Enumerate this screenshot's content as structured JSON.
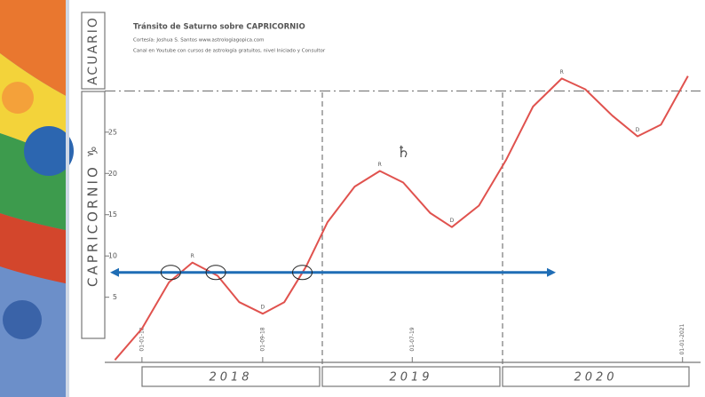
{
  "chart_data": {
    "type": "line",
    "title": "Tránsito de Saturno sobre CAPRICORNIO",
    "subtitle": "Cortesía: Joshua S. Santos  www.astrologiagopica.com",
    "note": "Canal en Youtube con cursos de astrología gratuitos, nivel Iniciado y Consultor",
    "upper_sign": "ACUARIO",
    "y_label": "CAPRICORNIO ♑",
    "years": [
      "2018",
      "2019",
      "2020"
    ],
    "x": [
      2017.85,
      2018.0,
      2018.15,
      2018.28,
      2018.42,
      2018.54,
      2018.67,
      2018.79,
      2018.91,
      2019.03,
      2019.18,
      2019.32,
      2019.45,
      2019.6,
      2019.72,
      2019.87,
      2020.02,
      2020.17,
      2020.33,
      2020.46,
      2020.61,
      2020.75,
      2020.88,
      2021.03
    ],
    "series": [
      {
        "name": "Saturno",
        "color": "#e0524e",
        "values": [
          -2.6,
          1.2,
          6.8,
          9.2,
          7.6,
          4.4,
          3.0,
          4.4,
          8.7,
          14.1,
          18.4,
          20.3,
          18.9,
          15.2,
          13.5,
          16.1,
          21.6,
          28.1,
          31.5,
          30.2,
          27.0,
          24.5,
          25.9,
          31.8
        ]
      }
    ],
    "annotations": [
      {
        "x": 2018.28,
        "y": 9.2,
        "text": "R"
      },
      {
        "x": 2018.67,
        "y": 3.0,
        "text": "D"
      },
      {
        "x": 2019.32,
        "y": 20.3,
        "text": "R"
      },
      {
        "x": 2019.72,
        "y": 13.5,
        "text": "D"
      },
      {
        "x": 2020.33,
        "y": 31.5,
        "text": "R"
      },
      {
        "x": 2020.75,
        "y": 24.5,
        "text": "D"
      },
      {
        "x": 2019.45,
        "y": 22.5,
        "text": "♄"
      }
    ],
    "highlight_level": 8,
    "highlight_color": "#1f6db5",
    "crossings": [
      2018.16,
      2018.41,
      2018.89
    ],
    "sign_boundary": 30,
    "xlim": [
      2017.7,
      2021.1
    ],
    "ylim": [
      -3,
      38
    ],
    "yticks": [
      5,
      10,
      15,
      20,
      25
    ],
    "xticks": [
      {
        "value": 2018.0,
        "label": "01-01-18"
      },
      {
        "value": 2018.67,
        "label": "01-09-18"
      },
      {
        "value": 2019.5,
        "label": "01-07-19"
      },
      {
        "value": 2021.0,
        "label": "01-01-2021"
      }
    ]
  }
}
